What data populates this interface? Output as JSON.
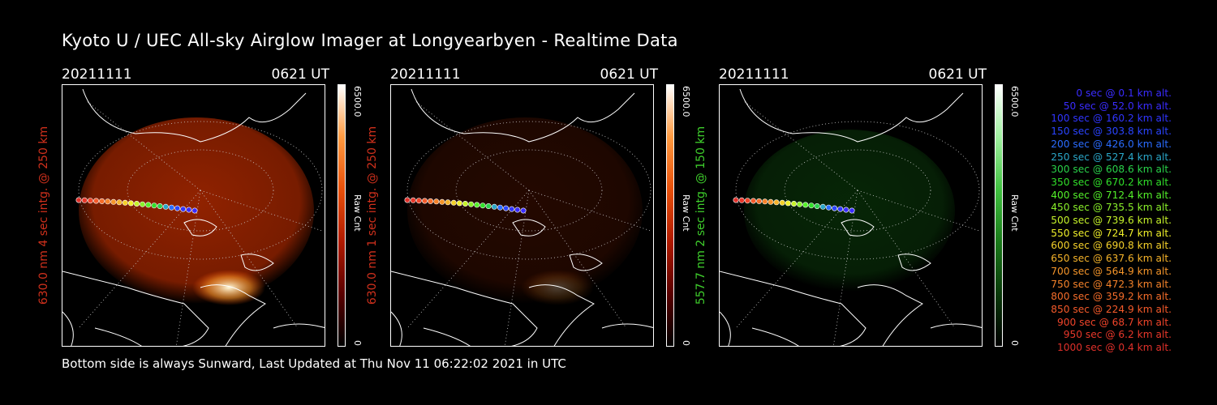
{
  "title": "Kyoto U / UEC All-sky Airglow Imager at Longyearbyen - Realtime Data",
  "footer": "Bottom side is always Sunward, Last Updated at Thu Nov 11 06:22:02 2021 in UTC",
  "panels": [
    {
      "date": "20211111",
      "time": "0621  UT",
      "side_label": "630.0 nm  4 sec intg. @ 250 km",
      "label_color": "#d0301c",
      "cbar_max": "6500.0",
      "cbar_unit": "Raw Cnt",
      "cbar_min": "0",
      "tone": "red",
      "glow": 1.0
    },
    {
      "date": "20211111",
      "time": "0621  UT",
      "side_label": "630.0 nm  1 sec intg. @ 250 km",
      "label_color": "#d0301c",
      "cbar_max": "6500.0",
      "cbar_unit": "Raw Cnt",
      "cbar_min": "0",
      "tone": "red",
      "glow": 0.25
    },
    {
      "date": "20211111",
      "time": "0621  UT",
      "side_label": "557.7 nm  2 sec intg. @ 150 km",
      "label_color": "#3fcf2c",
      "cbar_max": "6500.0",
      "cbar_unit": "Raw Cnt",
      "cbar_min": "0",
      "tone": "green",
      "glow": 0.4
    }
  ],
  "legend": [
    {
      "text": "0 sec @    0.1 km alt.",
      "color": "#3a2cff"
    },
    {
      "text": "50 sec @   52.0 km alt.",
      "color": "#3a2cff"
    },
    {
      "text": "100 sec @  160.2 km alt.",
      "color": "#3035ff"
    },
    {
      "text": "150 sec @  303.8 km alt.",
      "color": "#2a44ff"
    },
    {
      "text": "200 sec @  426.0 km alt.",
      "color": "#2a6cff"
    },
    {
      "text": "250 sec @  527.4 km alt.",
      "color": "#2aa6c8"
    },
    {
      "text": "300 sec @  608.6 km alt.",
      "color": "#29d24a"
    },
    {
      "text": "350 sec @  670.2 km alt.",
      "color": "#31e02a"
    },
    {
      "text": "400 sec @  712.4 km alt.",
      "color": "#54f02a"
    },
    {
      "text": "450 sec @  735.5 km alt.",
      "color": "#8af02a"
    },
    {
      "text": "500 sec @  739.6 km alt.",
      "color": "#c5f22a"
    },
    {
      "text": "550 sec @  724.7 km alt.",
      "color": "#f0f02a"
    },
    {
      "text": "600 sec @  690.8 km alt.",
      "color": "#f5d12a"
    },
    {
      "text": "650 sec @  637.6 km alt.",
      "color": "#f5b32a"
    },
    {
      "text": "700 sec @  564.9 km alt.",
      "color": "#f5952a"
    },
    {
      "text": "750 sec @  472.3 km alt.",
      "color": "#f5822a"
    },
    {
      "text": "800 sec @  359.2 km alt.",
      "color": "#f56d2a"
    },
    {
      "text": "850 sec @  224.9 km alt.",
      "color": "#f55a2a"
    },
    {
      "text": "900 sec @   68.7 km alt.",
      "color": "#f0442a"
    },
    {
      "text": "950 sec @    6.2 km alt.",
      "color": "#e8372a"
    },
    {
      "text": "1000 sec @    0.4 km alt.",
      "color": "#e0302a"
    }
  ]
}
